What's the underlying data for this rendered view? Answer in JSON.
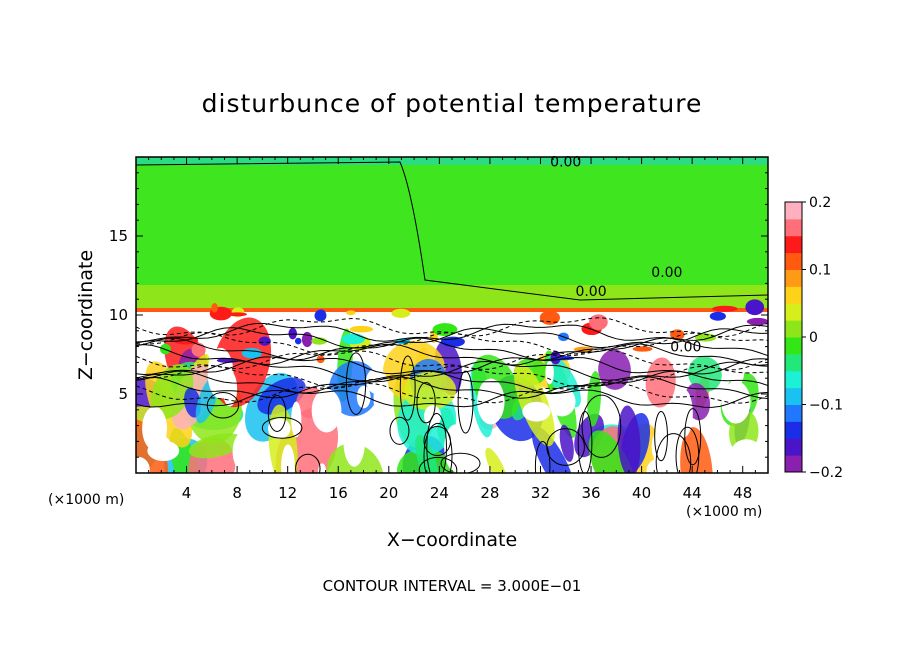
{
  "chart_data": {
    "type": "heatmap",
    "title": "disturbunce of potential temperature",
    "xlabel": "X−coordinate",
    "ylabel": "Z−coordinate",
    "x_unit": "(×1000 m)",
    "y_unit": "(×1000 m)",
    "xlim": [
      0,
      50
    ],
    "ylim": [
      0,
      20
    ],
    "x_ticks": [
      4,
      8,
      12,
      16,
      20,
      24,
      28,
      32,
      36,
      40,
      44,
      48
    ],
    "y_ticks": [
      5,
      10,
      15
    ],
    "colorbar": {
      "range": [
        -0.2,
        0.2
      ],
      "ticks": [
        {
          "value": 0.2,
          "label": "0.2"
        },
        {
          "value": 0.1,
          "label": "0.1"
        },
        {
          "value": 0.0,
          "label": "0"
        },
        {
          "value": -0.1,
          "label": "−0.1"
        },
        {
          "value": -0.2,
          "label": "−0.2"
        }
      ],
      "colors": [
        "#8a1fb0",
        "#4a14c8",
        "#1a2ee8",
        "#1f78ff",
        "#19c2f0",
        "#1cf0d6",
        "#22e87a",
        "#33e615",
        "#8ee61a",
        "#d6ee1c",
        "#ffd21a",
        "#ff9a14",
        "#ff5a10",
        "#ff1a1a",
        "#ff6f7a",
        "#ffb0bf"
      ]
    },
    "contour_interval_text": "CONTOUR INTERVAL = 3.000E−01",
    "contour_labels": [
      {
        "x": 34,
        "z": 19.4,
        "text": "0.00"
      },
      {
        "x": 36,
        "z": 11.2,
        "text": "0.00"
      },
      {
        "x": 42,
        "z": 12.4,
        "text": "0.00"
      },
      {
        "x": 43.5,
        "z": 7.7,
        "text": "0.00"
      }
    ]
  }
}
